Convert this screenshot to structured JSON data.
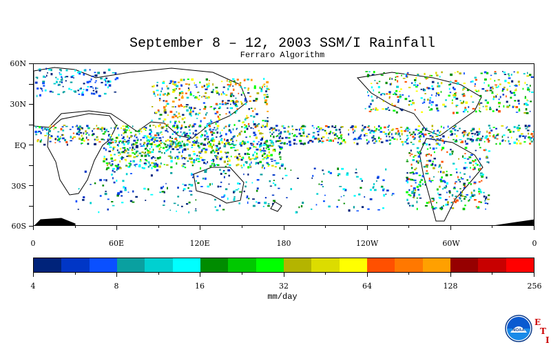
{
  "title": "September 8 – 12, 2003 SSM/I Rainfall",
  "subtitle": "Ferraro Algorithm",
  "map": {
    "lat_labels": [
      "60N",
      "30N",
      "EQ",
      "30S",
      "60S"
    ],
    "lon_labels": [
      "0",
      "60E",
      "120E",
      "180",
      "120W",
      "60W",
      "0"
    ]
  },
  "colorbar": {
    "colors": [
      "#00237a",
      "#0036c6",
      "#0a50ff",
      "#0aa0a0",
      "#00d0d0",
      "#00ffff",
      "#008c00",
      "#00c800",
      "#00ff00",
      "#b4b400",
      "#dcdc00",
      "#ffff00",
      "#ff5000",
      "#ff7800",
      "#ffa000",
      "#960000",
      "#c80000",
      "#ff0000"
    ],
    "labels": [
      "4",
      "8",
      "16",
      "32",
      "64",
      "128",
      "256"
    ],
    "units": "mm/day"
  },
  "logo": {
    "icon": "noaa-logo-icon",
    "text": "NOAA",
    "side_letters": [
      "E",
      "T",
      "I"
    ]
  }
}
